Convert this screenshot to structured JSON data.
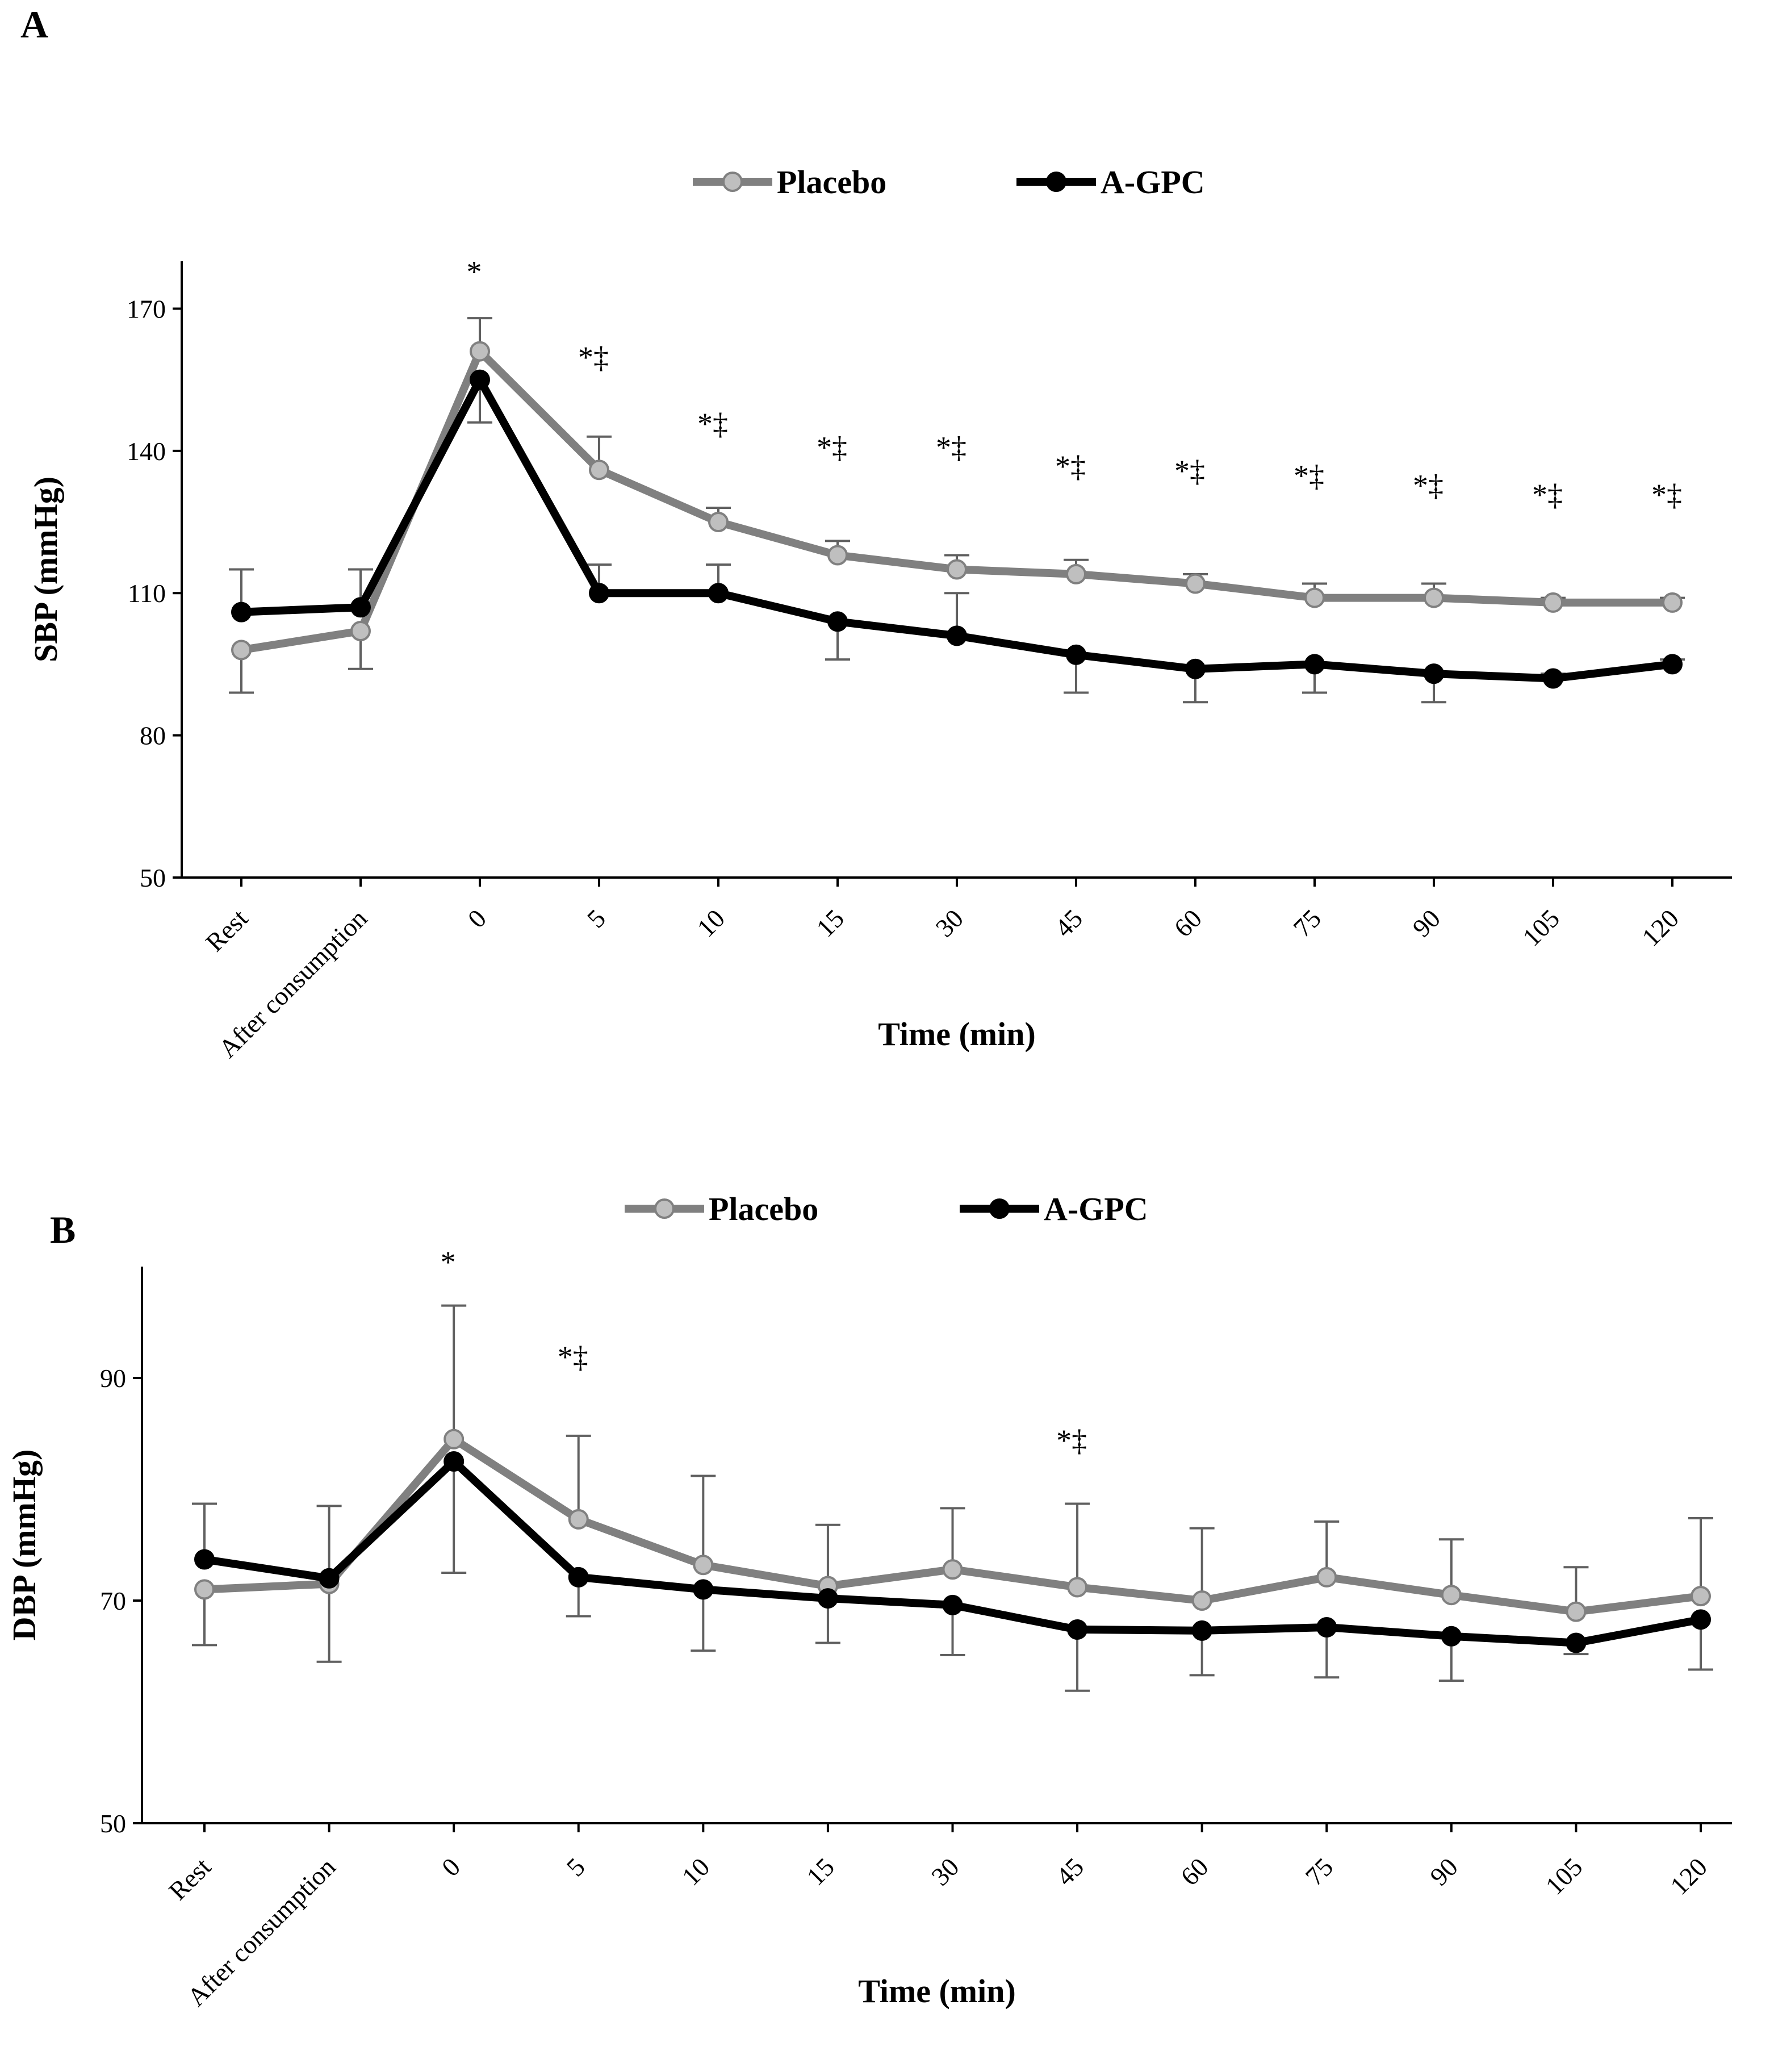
{
  "chart_data": [
    {
      "panel": "A",
      "type": "line",
      "ylabel": "SBP (mmHg)",
      "xlabel": "Time (min)",
      "ylim": [
        50,
        180
      ],
      "yticks": [
        50,
        80,
        110,
        140,
        170
      ],
      "categories": [
        "Rest",
        "After consumption",
        "0",
        "5",
        "10",
        "15",
        "30",
        "45",
        "60",
        "75",
        "90",
        "105",
        "120"
      ],
      "legend": [
        "Placebo",
        "A-GPC"
      ],
      "series": [
        {
          "name": "Placebo",
          "color": "#808080",
          "marker_fill": "#bfbfbf",
          "values": [
            98,
            102,
            161,
            136,
            125,
            118,
            115,
            114,
            112,
            109,
            109,
            108,
            108
          ],
          "errors": [
            9,
            8,
            7,
            7,
            3,
            3,
            3,
            3,
            2,
            3,
            3,
            1,
            1
          ],
          "err_dir": [
            -1,
            -1,
            1,
            1,
            1,
            1,
            1,
            1,
            1,
            1,
            1,
            1,
            1
          ]
        },
        {
          "name": "A-GPC",
          "color": "#000000",
          "marker_fill": "#000000",
          "values": [
            106,
            107,
            155,
            110,
            110,
            104,
            101,
            97,
            94,
            95,
            93,
            92,
            95
          ],
          "errors": [
            9,
            8,
            9,
            6,
            6,
            8,
            9,
            8,
            7,
            6,
            6,
            1,
            1
          ],
          "err_dir": [
            1,
            1,
            -1,
            1,
            1,
            -1,
            1,
            -1,
            -1,
            -1,
            -1,
            1,
            1
          ]
        }
      ],
      "annotations": [
        {
          "category": "0",
          "text": "*",
          "y": 178
        },
        {
          "category": "5",
          "text": "*‡",
          "y": 160
        },
        {
          "category": "10",
          "text": "*‡",
          "y": 146
        },
        {
          "category": "15",
          "text": "*‡",
          "y": 141
        },
        {
          "category": "30",
          "text": "*‡",
          "y": 141
        },
        {
          "category": "45",
          "text": "*‡",
          "y": 137
        },
        {
          "category": "60",
          "text": "*‡",
          "y": 136
        },
        {
          "category": "75",
          "text": "*‡",
          "y": 135
        },
        {
          "category": "90",
          "text": "*‡",
          "y": 133
        },
        {
          "category": "105",
          "text": "*‡",
          "y": 131
        },
        {
          "category": "120",
          "text": "*‡",
          "y": 131
        }
      ]
    },
    {
      "panel": "B",
      "type": "line",
      "ylabel": "DBP (mmHg)",
      "xlabel": "Time (min)",
      "ylim": [
        50,
        100
      ],
      "yticks": [
        50,
        70,
        90
      ],
      "categories": [
        "Rest",
        "After consumption",
        "0",
        "5",
        "10",
        "15",
        "30",
        "45",
        "60",
        "75",
        "90",
        "105",
        "120"
      ],
      "legend": [
        "Placebo",
        "A-GPC"
      ],
      "series": [
        {
          "name": "Placebo",
          "color": "#808080",
          "marker_fill": "#bfbfbf",
          "values": [
            71,
            71.5,
            84.5,
            77.3,
            73.2,
            71.3,
            72.8,
            71.2,
            70,
            72.1,
            70.5,
            69,
            70.4
          ],
          "errors": [
            5,
            7,
            12,
            7.5,
            8,
            5.5,
            5.5,
            7.5,
            6.5,
            5,
            5,
            4,
            7
          ],
          "err_dir": [
            -1,
            -1,
            1,
            1,
            1,
            1,
            1,
            1,
            1,
            1,
            1,
            1,
            1
          ]
        },
        {
          "name": "A-GPC",
          "color": "#000000",
          "marker_fill": "#000000",
          "values": [
            73.7,
            72,
            82.5,
            72.1,
            71,
            70.2,
            69.6,
            67.4,
            67.3,
            67.6,
            66.8,
            66.2,
            68.3
          ],
          "errors": [
            5,
            6.5,
            10,
            3.5,
            5.5,
            4,
            4.5,
            5.5,
            4,
            4.5,
            4,
            1,
            4.5
          ],
          "err_dir": [
            1,
            1,
            -1,
            -1,
            -1,
            -1,
            -1,
            -1,
            -1,
            -1,
            -1,
            -1,
            -1
          ]
        }
      ],
      "annotations": [
        {
          "category": "0",
          "text": "*",
          "y": 100.5
        },
        {
          "category": "5",
          "text": "*‡",
          "y": 92
        },
        {
          "category": "45",
          "text": "*‡",
          "y": 84.5
        }
      ]
    }
  ]
}
